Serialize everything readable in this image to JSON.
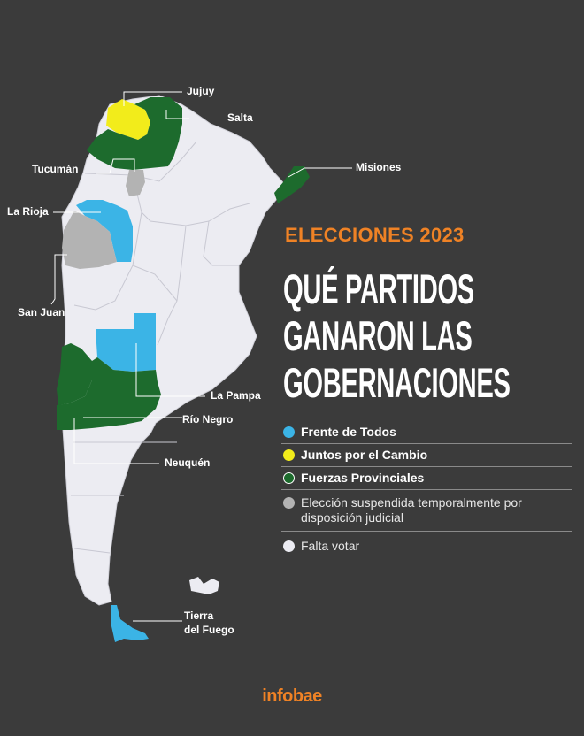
{
  "header": {
    "subtitle": "ELECCIONES 2023",
    "headline_lines": [
      "QUÉ PARTIDOS",
      "GANARON LAS",
      "GOBERNACIONES"
    ]
  },
  "map": {
    "province_labels": {
      "jujuy": "Jujuy",
      "salta": "Salta",
      "tucuman": "Tucumán",
      "misiones": "Misiones",
      "la_rioja": "La Rioja",
      "san_juan": "San Juan",
      "la_pampa": "La Pampa",
      "rio_negro": "Río Negro",
      "neuquen": "Neuquén",
      "tierra_del_fuego_line1": "Tierra",
      "tierra_del_fuego_line2": "del Fuego"
    },
    "results": [
      {
        "province": "Jujuy",
        "category": "Juntos por el Cambio"
      },
      {
        "province": "Salta",
        "category": "Fuerzas Provinciales"
      },
      {
        "province": "Tucumán",
        "category": "Elección suspendida temporalmente por disposición judicial"
      },
      {
        "province": "Misiones",
        "category": "Fuerzas Provinciales"
      },
      {
        "province": "La Rioja",
        "category": "Frente de Todos"
      },
      {
        "province": "San Juan",
        "category": "Elección suspendida temporalmente por disposición judicial"
      },
      {
        "province": "La Pampa",
        "category": "Frente de Todos"
      },
      {
        "province": "Río Negro",
        "category": "Fuerzas Provinciales"
      },
      {
        "province": "Neuquén",
        "category": "Fuerzas Provinciales"
      },
      {
        "province": "Tierra del Fuego",
        "category": "Frente de Todos"
      }
    ]
  },
  "legend": {
    "items": [
      {
        "label": "Frente de Todos",
        "color": "#3bb4e6"
      },
      {
        "label": "Juntos por el Cambio",
        "color": "#f2ec1b"
      },
      {
        "label": "Fuerzas Provinciales",
        "color": "#1d6b2d"
      },
      {
        "label": "Elección suspendida temporalmente por disposición judicial",
        "color": "#b3b3b3"
      },
      {
        "label": "Falta votar",
        "color": "#ececf2"
      }
    ]
  },
  "colors": {
    "background": "#3b3b3b",
    "accent": "#ef8225",
    "land": "#ececf2"
  },
  "brand": "infobae"
}
